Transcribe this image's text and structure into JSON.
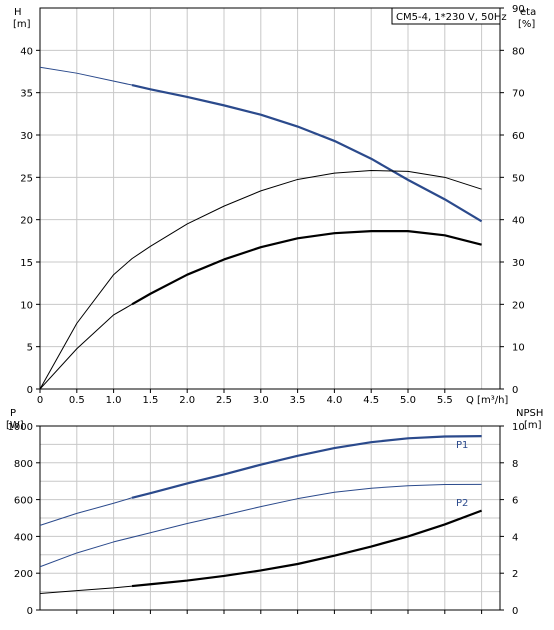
{
  "chart_data": [
    {
      "type": "line",
      "title": "CM5-4, 1*230 V, 50Hz",
      "xlabel": "Q [m³/h]",
      "ylabel": "H",
      "ylabel_unit": "[m]",
      "y2label": "eta",
      "y2label_unit": "[%]",
      "xlim": [
        0,
        6.25
      ],
      "ylim": [
        0,
        45
      ],
      "y2lim": [
        0,
        90
      ],
      "grid": true,
      "x_ticks": [
        "0",
        "0.5",
        "1.0",
        "1.5",
        "2.0",
        "2.5",
        "3.0",
        "3.5",
        "4.0",
        "4.5",
        "5.0",
        "5.5"
      ],
      "y_ticks": [
        "0",
        "5",
        "10",
        "15",
        "20",
        "25",
        "30",
        "35",
        "40"
      ],
      "y2_ticks": [
        "0",
        "10",
        "20",
        "30",
        "40",
        "50",
        "60",
        "70",
        "80",
        "90"
      ],
      "series": [
        {
          "name": "",
          "axis": "left",
          "color": "#2b4a8c",
          "x": [
            0,
            0.5,
            1.25,
            1.5,
            2.0,
            2.5,
            3.0,
            3.5,
            4.0,
            4.5,
            5.0,
            5.5,
            6.0
          ],
          "y": [
            38.0,
            37.3,
            35.9,
            35.4,
            34.5,
            33.5,
            32.4,
            31.0,
            29.3,
            27.2,
            24.7,
            22.4,
            19.8
          ],
          "dashed_until": 1.25
        },
        {
          "name": "",
          "axis": "right",
          "color": "#000000",
          "x": [
            0,
            0.5,
            1.0,
            1.25,
            1.5,
            2.0,
            2.5,
            3.0,
            3.5,
            4.0,
            4.5,
            5.0,
            5.5,
            6.0
          ],
          "y": [
            0,
            15.5,
            27,
            30.8,
            33.7,
            39,
            43.2,
            46.8,
            49.5,
            51.0,
            51.6,
            51.4,
            50.0,
            47.2
          ],
          "thin": true
        },
        {
          "name": "",
          "axis": "right",
          "color": "#000000",
          "x": [
            0,
            0.5,
            1.0,
            1.25,
            1.5,
            2.0,
            2.5,
            3.0,
            3.5,
            4.0,
            4.5,
            5.0,
            5.5,
            6.0
          ],
          "y": [
            0,
            9.5,
            17.5,
            20.0,
            22.5,
            27,
            30.6,
            33.5,
            35.6,
            36.8,
            37.3,
            37.3,
            36.3,
            34.1
          ],
          "dashed_until": 1.25
        }
      ]
    },
    {
      "type": "line",
      "xlabel": "",
      "ylabel": "P",
      "ylabel_unit": "[W]",
      "y2label": "NPSH",
      "y2label_unit": "[m]",
      "xlim": [
        0,
        6.25
      ],
      "ylim": [
        0,
        1000
      ],
      "y2lim": [
        0,
        10
      ],
      "grid": true,
      "y_ticks": [
        "0",
        "200",
        "400",
        "600",
        "800",
        "1000"
      ],
      "y2_ticks": [
        "0",
        "2",
        "4",
        "6",
        "8",
        "10"
      ],
      "series": [
        {
          "name": "P1",
          "axis": "left",
          "color": "#2b4a8c",
          "x": [
            0,
            0.5,
            1.0,
            1.25,
            1.5,
            2.0,
            2.5,
            3.0,
            3.5,
            4.0,
            4.5,
            5.0,
            5.5,
            6.0
          ],
          "y": [
            460,
            525,
            580,
            610,
            635,
            688,
            737,
            790,
            838,
            880,
            912,
            933,
            943,
            945
          ],
          "dashed_until": 1.25
        },
        {
          "name": "P2",
          "axis": "left",
          "color": "#2b4a8c",
          "x": [
            0,
            0.5,
            1.0,
            1.5,
            2.0,
            2.5,
            3.0,
            3.5,
            4.0,
            4.5,
            5.0,
            5.5,
            6.0
          ],
          "y": [
            235,
            310,
            370,
            420,
            470,
            515,
            562,
            605,
            640,
            662,
            675,
            682,
            683
          ],
          "thin": true
        },
        {
          "name": "",
          "axis": "right",
          "color": "#000000",
          "x": [
            0,
            0.5,
            1.0,
            1.25,
            1.5,
            2.0,
            2.5,
            3.0,
            3.5,
            4.0,
            4.5,
            5.0,
            5.5,
            6.0
          ],
          "y": [
            0.9,
            1.05,
            1.2,
            1.3,
            1.4,
            1.6,
            1.85,
            2.15,
            2.5,
            2.95,
            3.45,
            4.0,
            4.65,
            5.4
          ],
          "dashed_until": 1.25
        }
      ]
    }
  ]
}
